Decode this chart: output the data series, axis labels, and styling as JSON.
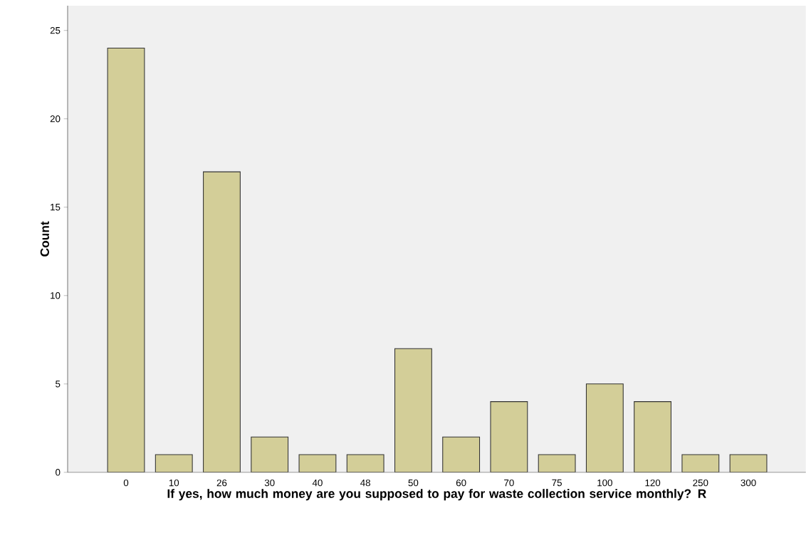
{
  "chart_data": {
    "type": "bar",
    "xlabel": "If yes, how much money are you supposed to pay for waste collection service monthly? R",
    "ylabel": "Count",
    "categories": [
      "0",
      "10",
      "26",
      "30",
      "40",
      "48",
      "50",
      "60",
      "70",
      "75",
      "100",
      "120",
      "250",
      "300"
    ],
    "values": [
      24,
      1,
      17,
      2,
      1,
      1,
      7,
      2,
      4,
      1,
      5,
      4,
      1,
      1
    ],
    "color": "#d3ce98",
    "ylim": [
      0,
      26.4
    ],
    "yticks": [
      0,
      5,
      10,
      15,
      20,
      25
    ],
    "grid": false
  }
}
